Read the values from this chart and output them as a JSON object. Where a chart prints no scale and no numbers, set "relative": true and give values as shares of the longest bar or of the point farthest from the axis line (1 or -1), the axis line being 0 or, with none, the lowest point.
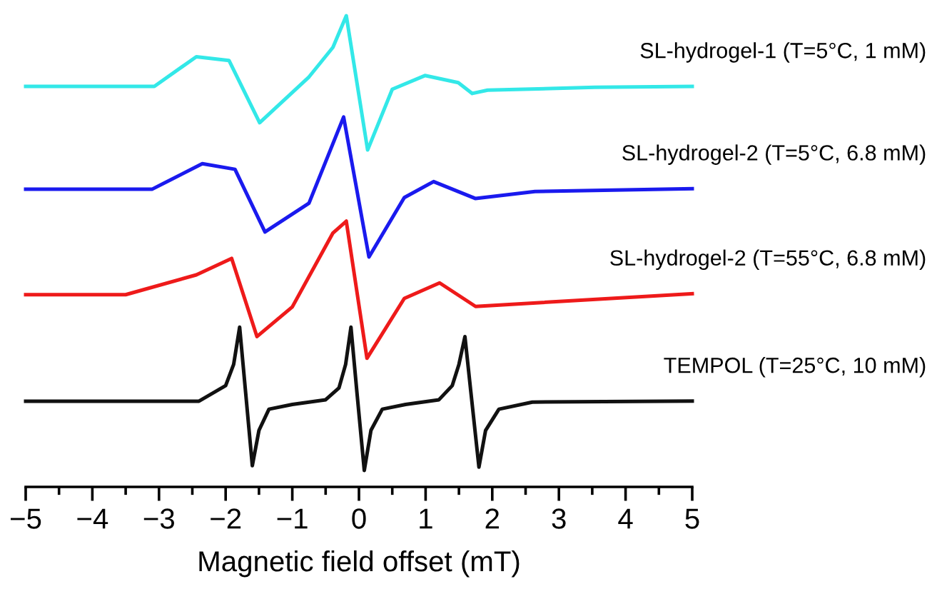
{
  "chart_data": {
    "type": "line",
    "relative": true,
    "xlabel": "Magnetic field offset (mT)",
    "xlim": [
      -5,
      5
    ],
    "xticks": [
      -5,
      {
        "value": -4.5,
        "label": null
      },
      -4,
      {
        "value": -3.5,
        "label": null
      },
      -3,
      {
        "value": -2.5,
        "label": null
      },
      -2,
      {
        "value": -1.5,
        "label": null
      },
      -1,
      {
        "value": -0.5,
        "label": null
      },
      0,
      {
        "value": 0.5,
        "label": null
      },
      1,
      {
        "value": 1.5,
        "label": null
      },
      2,
      {
        "value": 2.5,
        "label": null
      },
      3,
      {
        "value": 3.5,
        "label": null
      },
      4,
      {
        "value": 4.5,
        "label": null
      },
      5
    ],
    "tick_labels": "x",
    "grid": false,
    "legend": false,
    "marker": "none",
    "line_style": "solid",
    "series": [
      {
        "name": "SL-hydrogel-1 (T=5°C, 1 mM)",
        "color": "#33e8e8",
        "x": [
          -5,
          -3.07,
          -2.44,
          -1.95,
          -1.49,
          -0.75,
          -0.39,
          -0.19,
          0.13,
          0.5,
          0.99,
          1.49,
          1.7,
          1.93,
          3.54,
          5
        ],
        "values": [
          0.85,
          0.85,
          0.913,
          0.905,
          0.773,
          0.87,
          0.933,
          1.0,
          0.715,
          0.844,
          0.873,
          0.858,
          0.835,
          0.842,
          0.848,
          0.85
        ]
      },
      {
        "name": "SL-hydrogel-2 (T=5°C, 6.8 mM)",
        "color": "#1a1aee",
        "x": [
          -5,
          -3.1,
          -2.35,
          -1.86,
          -1.41,
          -0.75,
          -0.23,
          0.15,
          0.68,
          1.12,
          1.75,
          2.64,
          5
        ],
        "values": [
          0.632,
          0.632,
          0.686,
          0.674,
          0.541,
          0.602,
          0.785,
          0.488,
          0.614,
          0.648,
          0.612,
          0.627,
          0.633
        ]
      },
      {
        "name": "SL-hydrogel-2 (T=55°C, 6.8 mM)",
        "color": "#ee1a1a",
        "x": [
          -5,
          -3.5,
          -2.44,
          -1.91,
          -1.53,
          -1.0,
          -0.39,
          -0.19,
          0.12,
          0.68,
          1.21,
          1.75,
          5
        ],
        "values": [
          0.408,
          0.408,
          0.45,
          0.485,
          0.319,
          0.382,
          0.539,
          0.564,
          0.273,
          0.4,
          0.433,
          0.383,
          0.41
        ]
      },
      {
        "name": "TEMPOL (T=25°C, 10 mM)",
        "color": "#111111",
        "x": [
          -5,
          -2.4,
          -2.0,
          -1.88,
          -1.79,
          -1.7,
          -1.6,
          -1.5,
          -1.35,
          -1.0,
          -0.5,
          -0.3,
          -0.2,
          -0.12,
          -0.03,
          0.08,
          0.18,
          0.35,
          0.7,
          1.2,
          1.4,
          1.5,
          1.59,
          1.68,
          1.8,
          1.9,
          2.1,
          2.6,
          5
        ],
        "values": [
          0.182,
          0.182,
          0.215,
          0.26,
          0.339,
          0.2,
          0.045,
          0.12,
          0.165,
          0.175,
          0.185,
          0.21,
          0.26,
          0.339,
          0.2,
          0.035,
          0.12,
          0.165,
          0.175,
          0.185,
          0.215,
          0.26,
          0.319,
          0.2,
          0.042,
          0.12,
          0.165,
          0.18,
          0.182
        ]
      }
    ]
  }
}
